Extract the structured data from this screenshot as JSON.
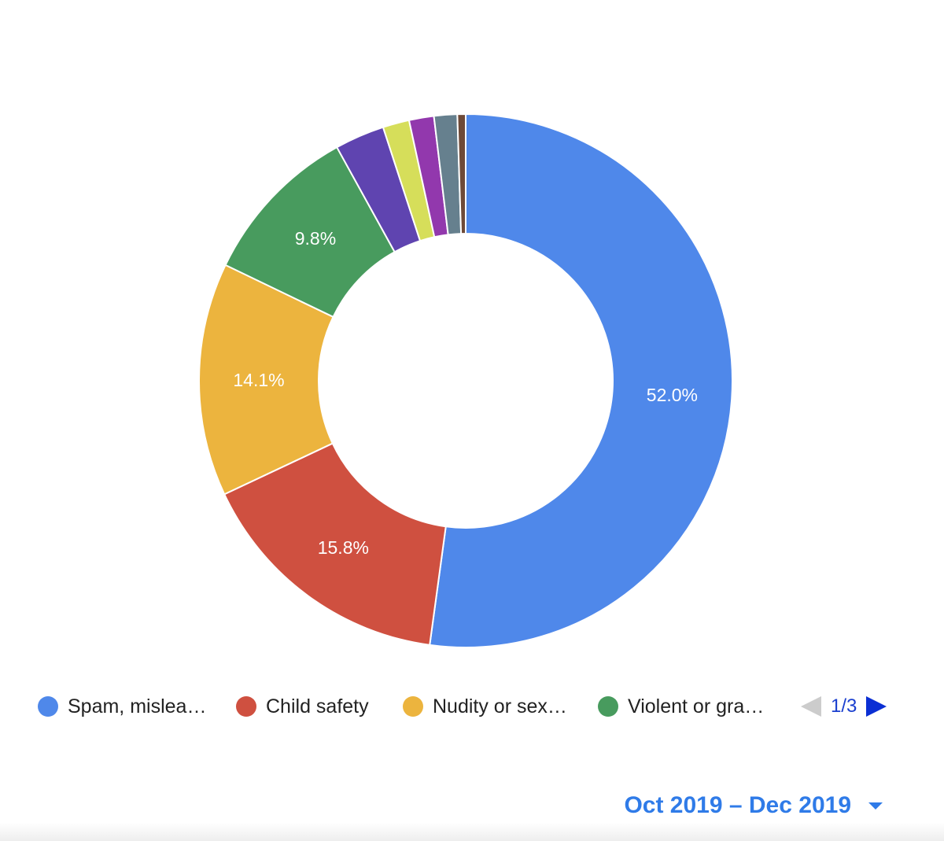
{
  "chart_data": {
    "type": "pie",
    "donut": true,
    "slices": [
      {
        "label": "Spam, mislea…",
        "value": 52.0,
        "data_label": "52.0%",
        "color": "#4f88ea"
      },
      {
        "label": "Child safety",
        "value": 15.8,
        "data_label": "15.8%",
        "color": "#cf5040"
      },
      {
        "label": "Nudity or sex…",
        "value": 14.1,
        "data_label": "14.1%",
        "color": "#ecb43e"
      },
      {
        "label": "Violent or gra…",
        "value": 9.8,
        "data_label": "9.8%",
        "color": "#489b5e"
      },
      {
        "label": "",
        "value": 3.0,
        "data_label": "",
        "color": "#5f44b0"
      },
      {
        "label": "",
        "value": 1.6,
        "data_label": "",
        "color": "#d6de5a"
      },
      {
        "label": "",
        "value": 1.5,
        "data_label": "",
        "color": "#9238ad"
      },
      {
        "label": "",
        "value": 1.4,
        "data_label": "",
        "color": "#66808e"
      },
      {
        "label": "",
        "value": 0.5,
        "data_label": "",
        "color": "#6e4a38"
      }
    ],
    "legend": {
      "placement": "bottom",
      "entries": [
        "Spam, mislea…",
        "Child safety",
        "Nudity or sex…",
        "Violent or gra…"
      ]
    }
  },
  "legend_pager": {
    "text": "1/3"
  },
  "date_range": {
    "label": "Oct 2019 – Dec 2019"
  }
}
